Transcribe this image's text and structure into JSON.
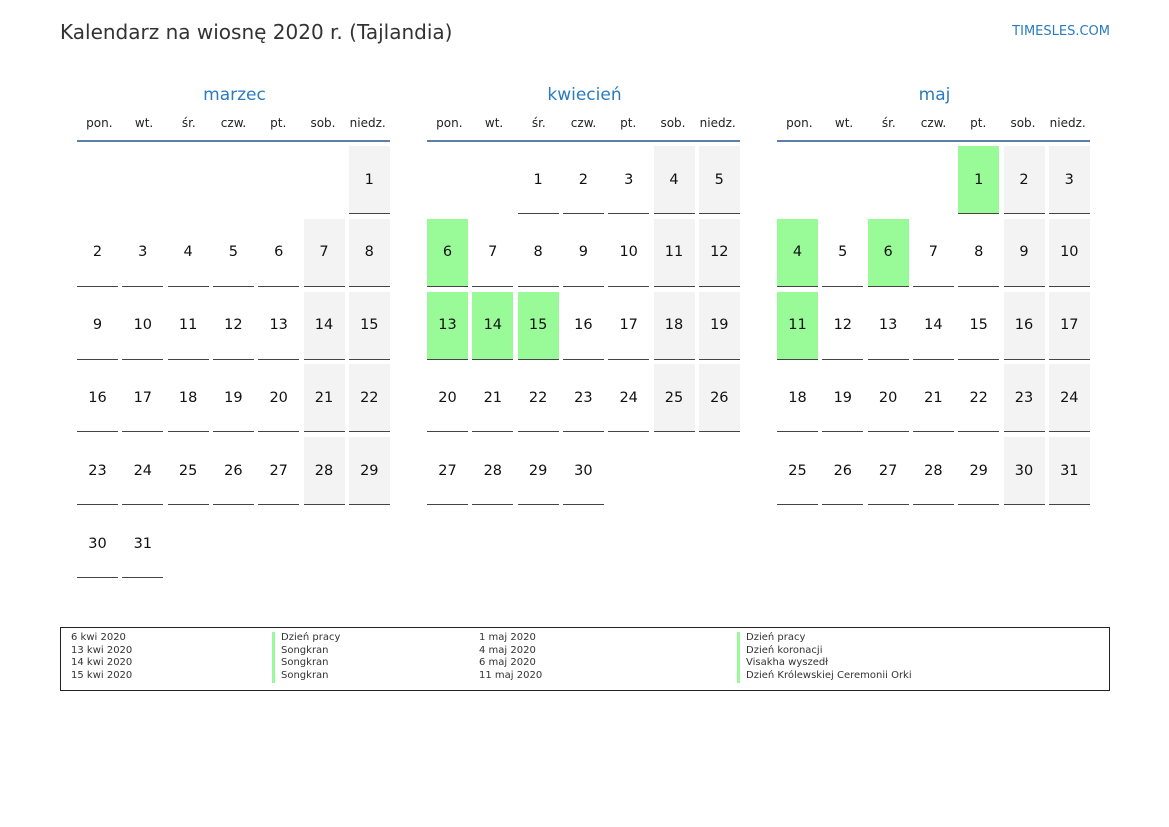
{
  "header": {
    "title": "Kalendarz na wiosnę 2020 r. (Tajlandia)",
    "site": "TIMESLES.COM"
  },
  "weekdays": [
    "pon.",
    "wt.",
    "śr.",
    "czw.",
    "pt.",
    "sob.",
    "niedz."
  ],
  "colors": {
    "accent": "#2a7bbf",
    "holiday": "#98fb98",
    "weekend": "#f3f3f3"
  },
  "months": [
    {
      "name": "marzec",
      "start_offset": 6,
      "days": 31,
      "holidays": []
    },
    {
      "name": "kwiecień",
      "start_offset": 2,
      "days": 30,
      "holidays": [
        6,
        13,
        14,
        15
      ]
    },
    {
      "name": "maj",
      "start_offset": 4,
      "days": 31,
      "holidays": [
        1,
        4,
        6,
        11
      ]
    }
  ],
  "legend": {
    "left": [
      {
        "date": "6 kwi 2020",
        "name": "Dzień pracy"
      },
      {
        "date": "13 kwi 2020",
        "name": "Songkran"
      },
      {
        "date": "14 kwi 2020",
        "name": "Songkran"
      },
      {
        "date": "15 kwi 2020",
        "name": "Songkran"
      }
    ],
    "right": [
      {
        "date": "1 maj 2020",
        "name": "Dzień pracy"
      },
      {
        "date": "4 maj 2020",
        "name": "Dzień koronacji"
      },
      {
        "date": "6 maj 2020",
        "name": "Visakha wyszedł"
      },
      {
        "date": "11 maj 2020",
        "name": "Dzień Królewskiej Ceremonii Orki"
      }
    ]
  }
}
